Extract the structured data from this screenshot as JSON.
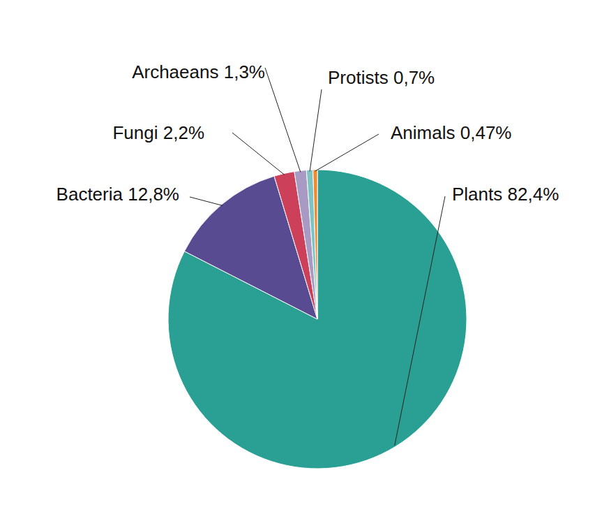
{
  "chart_data": {
    "type": "pie",
    "categories": [
      "Plants",
      "Bacteria",
      "Fungi",
      "Archaeans",
      "Protists",
      "Animals"
    ],
    "values": [
      82.4,
      12.8,
      2.2,
      1.3,
      0.7,
      0.47
    ],
    "value_labels": [
      "82,4%",
      "12,8%",
      "2,2%",
      "1,3%",
      "0,7%",
      "0,47%"
    ],
    "colors": [
      "#2aa094",
      "#584b91",
      "#cc4159",
      "#a99ac4",
      "#7ec4c4",
      "#f08a30"
    ],
    "data_labels": true
  }
}
